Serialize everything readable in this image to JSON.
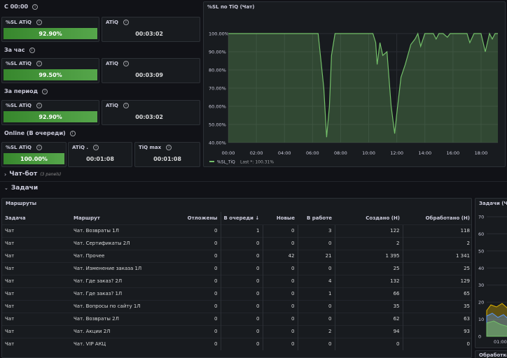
{
  "sections": {
    "s1": "С 00:00",
    "s2": "За час",
    "s3": "За период",
    "s4": "Online (В очереди)"
  },
  "stats": [
    {
      "title": "%SL ATiQ",
      "value": "92.90%"
    },
    {
      "title": "ATiQ",
      "value": "00:03:02"
    },
    {
      "title": "%SL ATiQ",
      "value": "99.50%"
    },
    {
      "title": "ATiQ",
      "value": "00:03:09"
    },
    {
      "title": "%SL ATiQ",
      "value": "92.90%"
    },
    {
      "title": "ATiQ",
      "value": "00:03:02"
    },
    {
      "title": "%SL ATiQ",
      "value": "100.00%"
    },
    {
      "title": "ATiQ .",
      "value": "00:01:08"
    },
    {
      "title": "TiQ max",
      "value": "00:01:08"
    }
  ],
  "colors": {
    "accent_green": "#56a64b",
    "line_green": "#73bf69",
    "background": "#111217",
    "panel": "#181b1f"
  },
  "chart_data": {
    "type": "area",
    "title": "%SL по TiQ (Чат)",
    "x_ticks": [
      "00:00",
      "02:00",
      "04:00",
      "06:00",
      "08:00",
      "10:00",
      "12:00",
      "14:00",
      "16:00",
      "18:00"
    ],
    "y_ticks": [
      "100.00%",
      "90.00%",
      "80.00%",
      "70.00%",
      "60.00%",
      "50.00%",
      "40.00%"
    ],
    "ylim": [
      40,
      100
    ],
    "xlim": [
      0,
      19.2
    ],
    "series": [
      {
        "name": "%SL_TiQ",
        "legend_extra": "Last *: 100.31%",
        "x": [
          0,
          6.4,
          6.8,
          7.0,
          7.2,
          7.35,
          7.6,
          7.9,
          8.3,
          8.6,
          9.2,
          9.6,
          10.3,
          10.5,
          10.6,
          10.8,
          11.0,
          11.3,
          11.6,
          11.85,
          12.0,
          12.3,
          12.6,
          13.0,
          13.3,
          13.5,
          13.7,
          14.0,
          14.3,
          14.6,
          14.8,
          15.0,
          15.3,
          15.6,
          15.8,
          16.0,
          16.3,
          16.6,
          17.0,
          17.2,
          17.5,
          17.7,
          18.0,
          18.3,
          18.6,
          18.8,
          19.0,
          19.2
        ],
        "y": [
          100,
          100,
          70,
          43,
          60,
          88,
          100,
          100,
          100,
          100,
          100,
          100,
          100,
          95,
          83,
          95,
          88,
          90,
          60,
          45,
          56,
          76,
          83,
          94,
          97,
          100,
          93,
          100,
          100,
          100,
          97,
          100,
          100,
          98,
          100,
          100,
          100,
          100,
          100,
          95,
          100,
          100,
          100,
          90,
          100,
          97,
          100,
          100
        ]
      }
    ]
  },
  "rows_collapsed": {
    "label": "Чат-бот",
    "sub": "(3 panels)"
  },
  "rows_open": {
    "label": "Задачи"
  },
  "table": {
    "title": "Маршруты",
    "columns": [
      "Задача",
      "Маршрут",
      "Отложены",
      "В очереди ↓",
      "Новые",
      "В работе",
      "Создано (Н)",
      "Обработано (Н)"
    ],
    "rows": [
      [
        "Чат",
        "Чат. Возвраты 1Л",
        "0",
        "1",
        "0",
        "3",
        "122",
        "118"
      ],
      [
        "Чат",
        "Чат. Сертификаты 2Л",
        "0",
        "0",
        "0",
        "0",
        "2",
        "2"
      ],
      [
        "Чат",
        "Чат. Прочее",
        "0",
        "0",
        "42",
        "21",
        "1 395",
        "1 341"
      ],
      [
        "Чат",
        "Чат. Изменение заказа 1Л",
        "0",
        "0",
        "0",
        "0",
        "25",
        "25"
      ],
      [
        "Чат",
        "Чат. Где заказ? 2Л",
        "0",
        "0",
        "0",
        "4",
        "132",
        "129"
      ],
      [
        "Чат",
        "Чат. Где заказ? 1Л",
        "0",
        "0",
        "0",
        "1",
        "66",
        "65"
      ],
      [
        "Чат",
        "Чат. Вопросы по сайту 1Л",
        "0",
        "0",
        "0",
        "0",
        "35",
        "35"
      ],
      [
        "Чат",
        "Чат. Возвраты 2Л",
        "0",
        "0",
        "0",
        "0",
        "62",
        "63"
      ],
      [
        "Чат",
        "Чат. Акции 2Л",
        "0",
        "0",
        "0",
        "2",
        "94",
        "93"
      ],
      [
        "Чат",
        "Чат. VIP АКЦ",
        "0",
        "0",
        "0",
        "0",
        "0",
        "0"
      ]
    ]
  },
  "right_panel": {
    "title": "Задачи (Ча",
    "y_ticks": [
      "70",
      "60",
      "50",
      "40",
      "30",
      "20",
      "10",
      "0"
    ],
    "x_tick": "01:00",
    "bottom_title": "Обработка"
  }
}
